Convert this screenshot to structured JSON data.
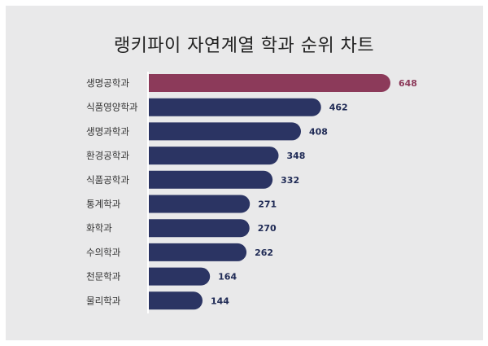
{
  "title": "랭키파이 자연계열 학과 순위 차트",
  "colors": {
    "highlight": "#8c3a5a",
    "bar": "#2b3463",
    "highlight_text": "#8c3a5a",
    "value_text": "#1f2a55"
  },
  "chart_data": {
    "type": "bar",
    "orientation": "horizontal",
    "title": "랭키파이 자연계열 학과 순위 차트",
    "categories": [
      "생명공학과",
      "식품영양학과",
      "생명과학과",
      "환경공학과",
      "식품공학과",
      "통계학과",
      "화학과",
      "수의학과",
      "천문학과",
      "물리학과"
    ],
    "values": [
      648,
      462,
      408,
      348,
      332,
      271,
      270,
      262,
      164,
      144
    ],
    "highlight_index": 0,
    "xlim": [
      0,
      648
    ],
    "grid": false,
    "legend": "none"
  }
}
